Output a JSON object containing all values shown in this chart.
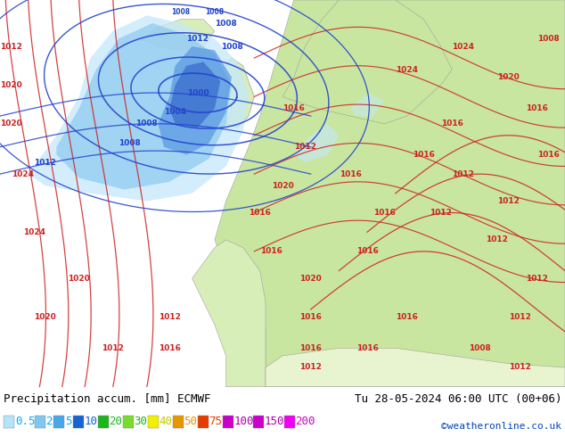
{
  "title_left": "Precipitation accum. [mm] ECMWF",
  "title_right": "Tu 28-05-2024 06:00 UTC (00+06)",
  "credit": "©weatheronline.co.uk",
  "legend_values": [
    "0.5",
    "2",
    "5",
    "10",
    "20",
    "30",
    "40",
    "50",
    "75",
    "100",
    "150",
    "200"
  ],
  "legend_colors": [
    "#b3e4f7",
    "#7ec8f0",
    "#47a7e8",
    "#1464d2",
    "#1eb41e",
    "#78dc28",
    "#f0f000",
    "#e69600",
    "#e63c00",
    "#c800c8",
    "#c800c8",
    "#f000f0"
  ],
  "legend_text_colors": [
    "#00aaff",
    "#00aaff",
    "#00aaff",
    "#1464d2",
    "#1eb41e",
    "#1eb41e",
    "#c8c800",
    "#e69600",
    "#e63c00",
    "#aa00aa",
    "#aa00aa",
    "#cc00cc"
  ],
  "bg_color": "#ffffff",
  "fig_width": 6.34,
  "fig_height": 4.9,
  "dpi": 100,
  "map_colors": {
    "ocean_deep": "#a8d4f0",
    "ocean_mid": "#c5e3f5",
    "ocean_light": "#deeefa",
    "land_green": "#c8e6a0",
    "land_light": "#d8eeb8",
    "land_pale": "#e8f4d0",
    "precip_light": "#c5e8fc",
    "precip_mid": "#8cc8f0",
    "precip_blue": "#5090e0",
    "precip_dark": "#2050c0",
    "coast_gray": "#a0a0a0",
    "border_gray": "#909090"
  },
  "isobar_blue_color": "#2244cc",
  "isobar_red_color": "#cc2222",
  "isobar_fontsize": 6.5,
  "label_fontsize": 9,
  "credit_fontsize": 8,
  "legend_fontsize": 9
}
